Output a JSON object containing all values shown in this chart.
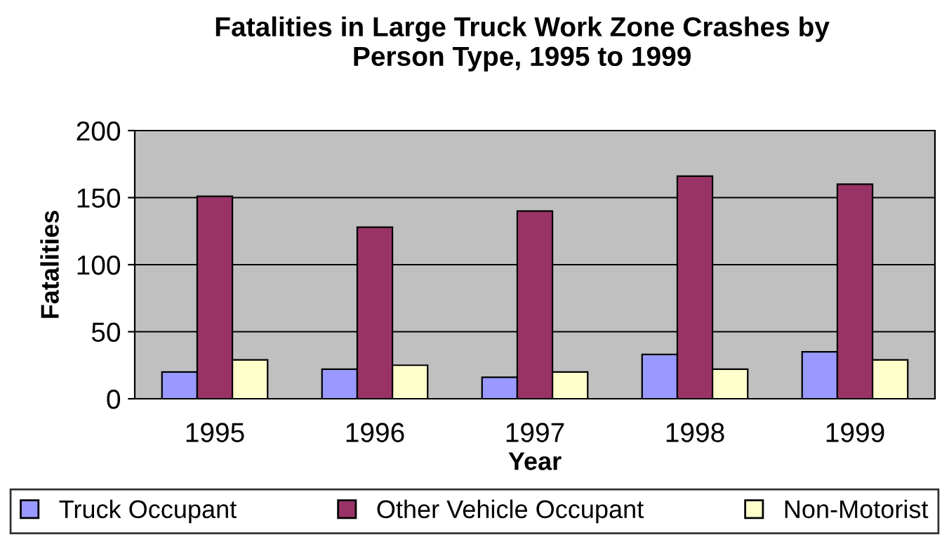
{
  "chart_data": {
    "type": "bar",
    "title": "Fatalities in Large Truck Work Zone Crashes by\nPerson Type, 1995 to 1999",
    "xlabel": "Year",
    "ylabel": "Fatalities",
    "categories": [
      "1995",
      "1996",
      "1997",
      "1998",
      "1999"
    ],
    "series": [
      {
        "name": "Truck Occupant",
        "color": "#9999ff",
        "values": [
          20,
          22,
          16,
          33,
          35
        ]
      },
      {
        "name": "Other Vehicle Occupant",
        "color": "#993366",
        "values": [
          151,
          128,
          140,
          166,
          160
        ]
      },
      {
        "name": "Non-Motorist",
        "color": "#ffffcc",
        "values": [
          29,
          25,
          20,
          22,
          29
        ]
      }
    ],
    "ylim": [
      0,
      200
    ],
    "yticks": [
      0,
      50,
      100,
      150,
      200
    ],
    "grid": "y",
    "legend": "bottom"
  }
}
